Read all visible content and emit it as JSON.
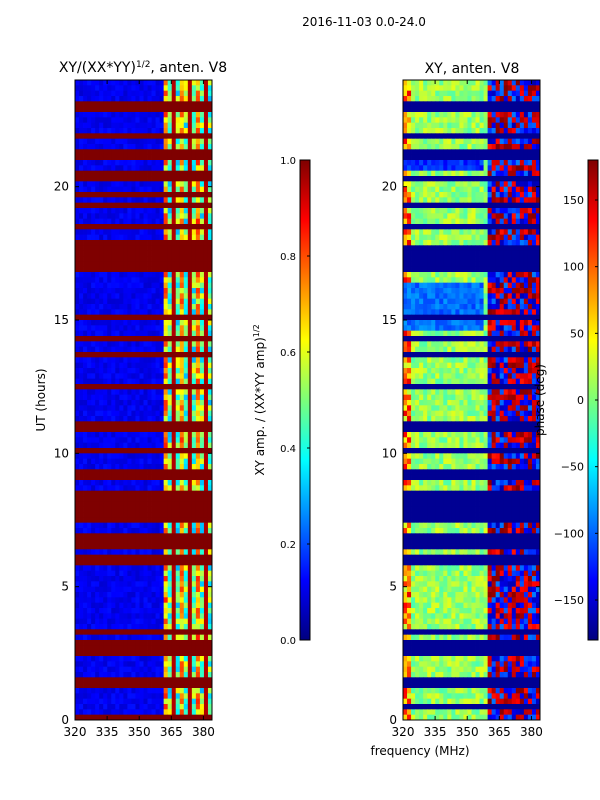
{
  "figure": {
    "suptitle": "2016-11-03 0.0-24.0",
    "shared_xlabel": "frequency (MHz)"
  },
  "colors": {
    "low": "#00007f",
    "mid": "#7cff79",
    "high": "#7f0000",
    "flag": "#800000",
    "cmap_stops": [
      "#00007f",
      "#0000ff",
      "#007fff",
      "#00ffff",
      "#7cff79",
      "#ffff00",
      "#ff7f00",
      "#ff0000",
      "#7f0000"
    ]
  },
  "chart_data": [
    {
      "type": "heatmap",
      "title": "XY/(XX*YY)^1/2, anten. V8",
      "title_main": "XY/(XX*YY)",
      "title_sup": "1/2",
      "title_tail": ", anten. V8",
      "xlabel": "",
      "ylabel": "UT (hours)",
      "xlim": [
        320,
        384
      ],
      "ylim": [
        0,
        24
      ],
      "xticks": [
        320,
        335,
        350,
        365,
        380
      ],
      "yticks": [
        0,
        5,
        10,
        15,
        20
      ],
      "colorbar": {
        "label": "XY amp. / (XX*YY amp)^1/2",
        "label_main": "XY amp. / (XX*YY amp)",
        "label_sup": "1/2",
        "range": [
          0.0,
          1.0
        ],
        "ticks": [
          "0.0",
          "0.2",
          "0.4",
          "0.6",
          "0.8",
          "1.0"
        ]
      },
      "description_values": {
        "background_value": 0.05,
        "active_band_mhz": [
          361,
          384
        ],
        "flagged_hours": [
          0.1,
          1.4,
          2.5,
          2.8,
          3.3,
          5.9,
          6.1,
          6.6,
          6.8,
          7.5,
          7.7,
          8.0,
          8.2,
          8.5,
          9.2,
          10.1,
          11.0,
          12.5,
          13.7,
          14.3,
          15.1,
          16.9,
          17.0,
          17.2,
          17.3,
          17.4,
          17.5,
          17.6,
          17.7,
          17.8,
          18.5,
          19.3,
          19.7,
          20.3,
          20.4,
          21.2,
          21.3,
          21.9,
          23.0
        ]
      }
    },
    {
      "type": "heatmap",
      "title": "XY, anten. V8",
      "xlabel": "frequency (MHz)",
      "ylabel": "",
      "xlim": [
        320,
        384
      ],
      "ylim": [
        0,
        24
      ],
      "xticks": [
        320,
        335,
        350,
        365,
        380
      ],
      "yticks": [
        0,
        5,
        10,
        15,
        20
      ],
      "colorbar": {
        "label": "phase (deg)",
        "range": [
          -180,
          180
        ],
        "ticks": [
          "-150",
          "-100",
          "-50",
          "0",
          "50",
          "100",
          "150"
        ]
      },
      "description_values": {
        "background_phase_deg": 0,
        "flagged_hours": [
          0.5,
          1.4,
          2.5,
          2.8,
          3.3,
          5.9,
          6.1,
          6.6,
          6.8,
          7.5,
          7.7,
          8.0,
          8.2,
          8.5,
          9.2,
          10.1,
          11.0,
          12.5,
          13.7,
          14.3,
          15.1,
          17.0,
          17.3,
          17.6,
          18.5,
          19.3,
          20.3,
          21.2,
          21.9,
          23.0
        ]
      }
    }
  ]
}
